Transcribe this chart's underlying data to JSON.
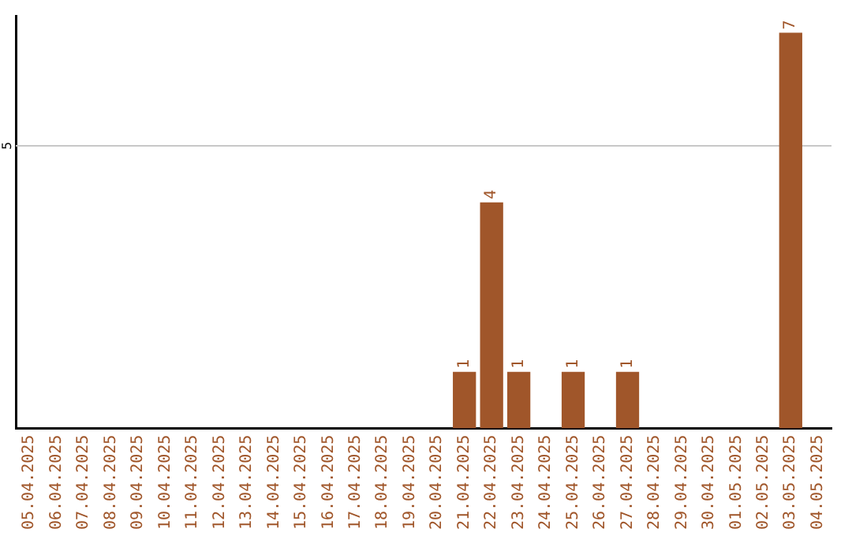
{
  "chart_data": {
    "type": "bar",
    "categories": [
      "05.04.2025",
      "06.04.2025",
      "07.04.2025",
      "08.04.2025",
      "09.04.2025",
      "10.04.2025",
      "11.04.2025",
      "12.04.2025",
      "13.04.2025",
      "14.04.2025",
      "15.04.2025",
      "16.04.2025",
      "17.04.2025",
      "18.04.2025",
      "19.04.2025",
      "20.04.2025",
      "21.04.2025",
      "22.04.2025",
      "23.04.2025",
      "24.04.2025",
      "25.04.2025",
      "26.04.2025",
      "27.04.2025",
      "28.04.2025",
      "29.04.2025",
      "30.04.2025",
      "01.05.2025",
      "02.05.2025",
      "03.05.2025",
      "04.05.2025"
    ],
    "values": [
      null,
      null,
      null,
      null,
      null,
      null,
      null,
      null,
      null,
      null,
      null,
      null,
      null,
      null,
      null,
      null,
      1,
      4,
      1,
      null,
      1,
      null,
      1,
      null,
      null,
      null,
      null,
      null,
      7,
      null
    ],
    "data_labels": true,
    "color": "#a0562a",
    "ylim": [
      0,
      7.3
    ],
    "ref_lines": [
      {
        "axis": "y",
        "value": 5,
        "label": "5",
        "color": "#c8c8c8"
      }
    ],
    "legend": false
  }
}
